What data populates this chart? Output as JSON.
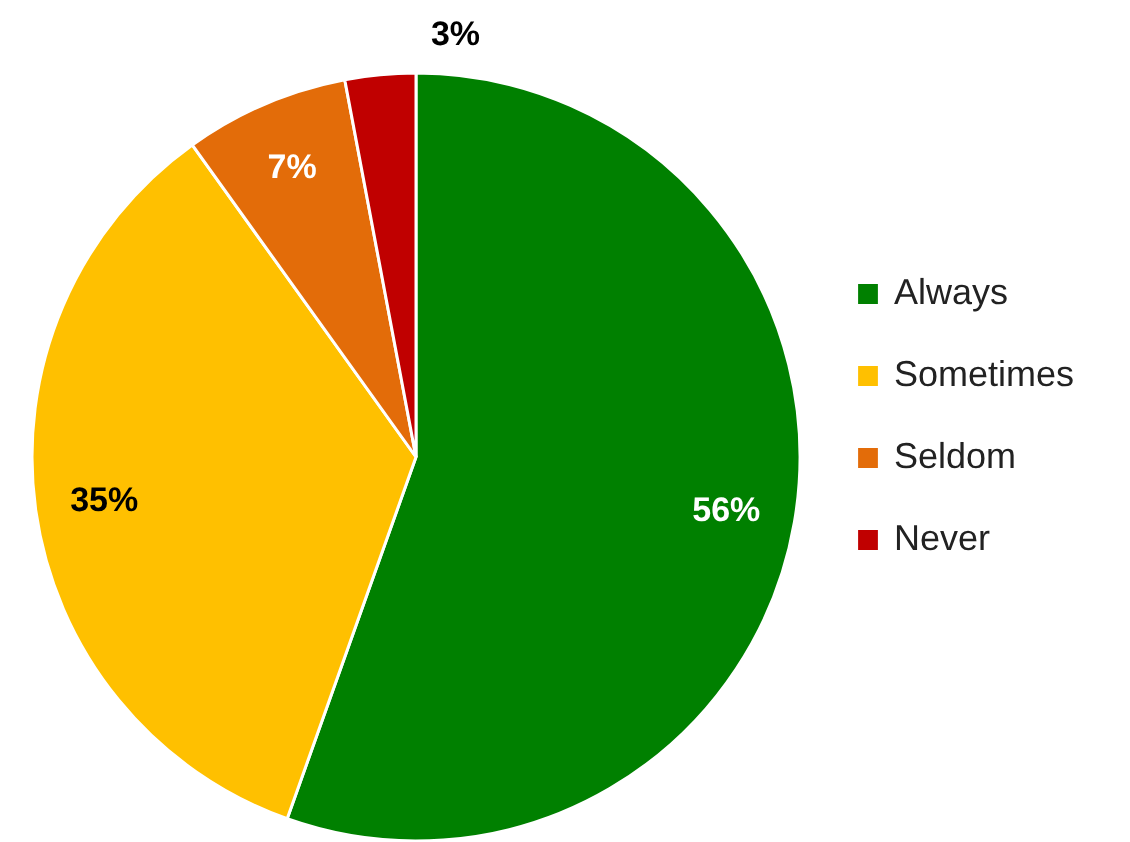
{
  "chart_data": {
    "type": "pie",
    "categories": [
      "Always",
      "Sometimes",
      "Seldom",
      "Never"
    ],
    "values": [
      56,
      35,
      7,
      3
    ],
    "colors": [
      "#008000",
      "#ffc000",
      "#e36c09",
      "#c00000"
    ],
    "value_labels": [
      "56%",
      "35%",
      "7%",
      "3%"
    ],
    "legend": "right"
  }
}
